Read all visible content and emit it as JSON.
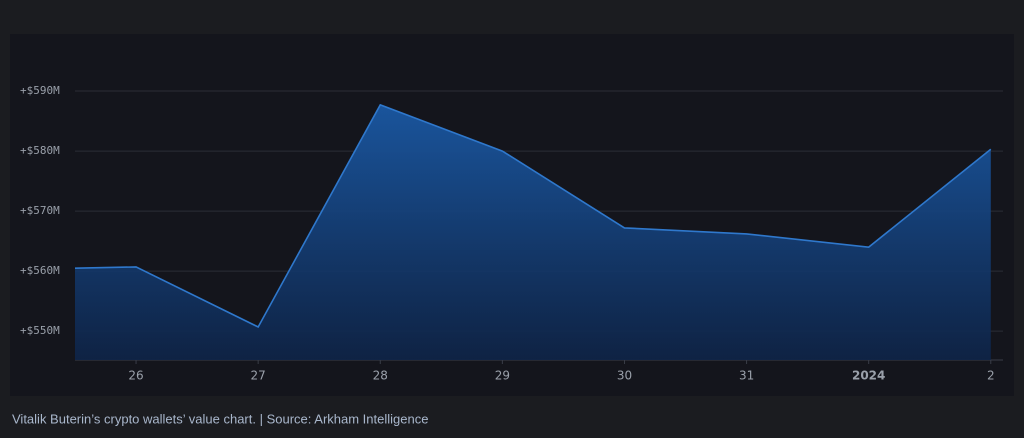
{
  "chart_data": {
    "type": "area",
    "caption": "Vitalik Buterin’s crypto wallets’ value chart. | Source: Arkham Intelligence",
    "x": [
      -0.5,
      0,
      1,
      2,
      3,
      4,
      5,
      6,
      7
    ],
    "series": [
      {
        "color": "#2f78cc",
        "values": [
          560500000,
          560700000,
          550700000,
          587700000,
          580000000,
          567200000,
          566200000,
          564000000,
          580300000
        ]
      }
    ],
    "xlim": [
      -0.5,
      7.1
    ],
    "xticks": [
      {
        "value": 0,
        "label": "26"
      },
      {
        "value": 1,
        "label": "27"
      },
      {
        "value": 2,
        "label": "28"
      },
      {
        "value": 3,
        "label": "29"
      },
      {
        "value": 4,
        "label": "30"
      },
      {
        "value": 5,
        "label": "31"
      },
      {
        "value": 6,
        "label": "2024",
        "bold": true
      },
      {
        "value": 7,
        "label": "2"
      }
    ],
    "ylim": [
      545200000,
      598500000
    ],
    "yticks": [
      {
        "value": 550000000,
        "label": "+$550M"
      },
      {
        "value": 560000000,
        "label": "+$560M"
      },
      {
        "value": 570000000,
        "label": "+$570M"
      },
      {
        "value": 580000000,
        "label": "+$580M"
      },
      {
        "value": 590000000,
        "label": "+$590M"
      }
    ],
    "grid": true
  }
}
